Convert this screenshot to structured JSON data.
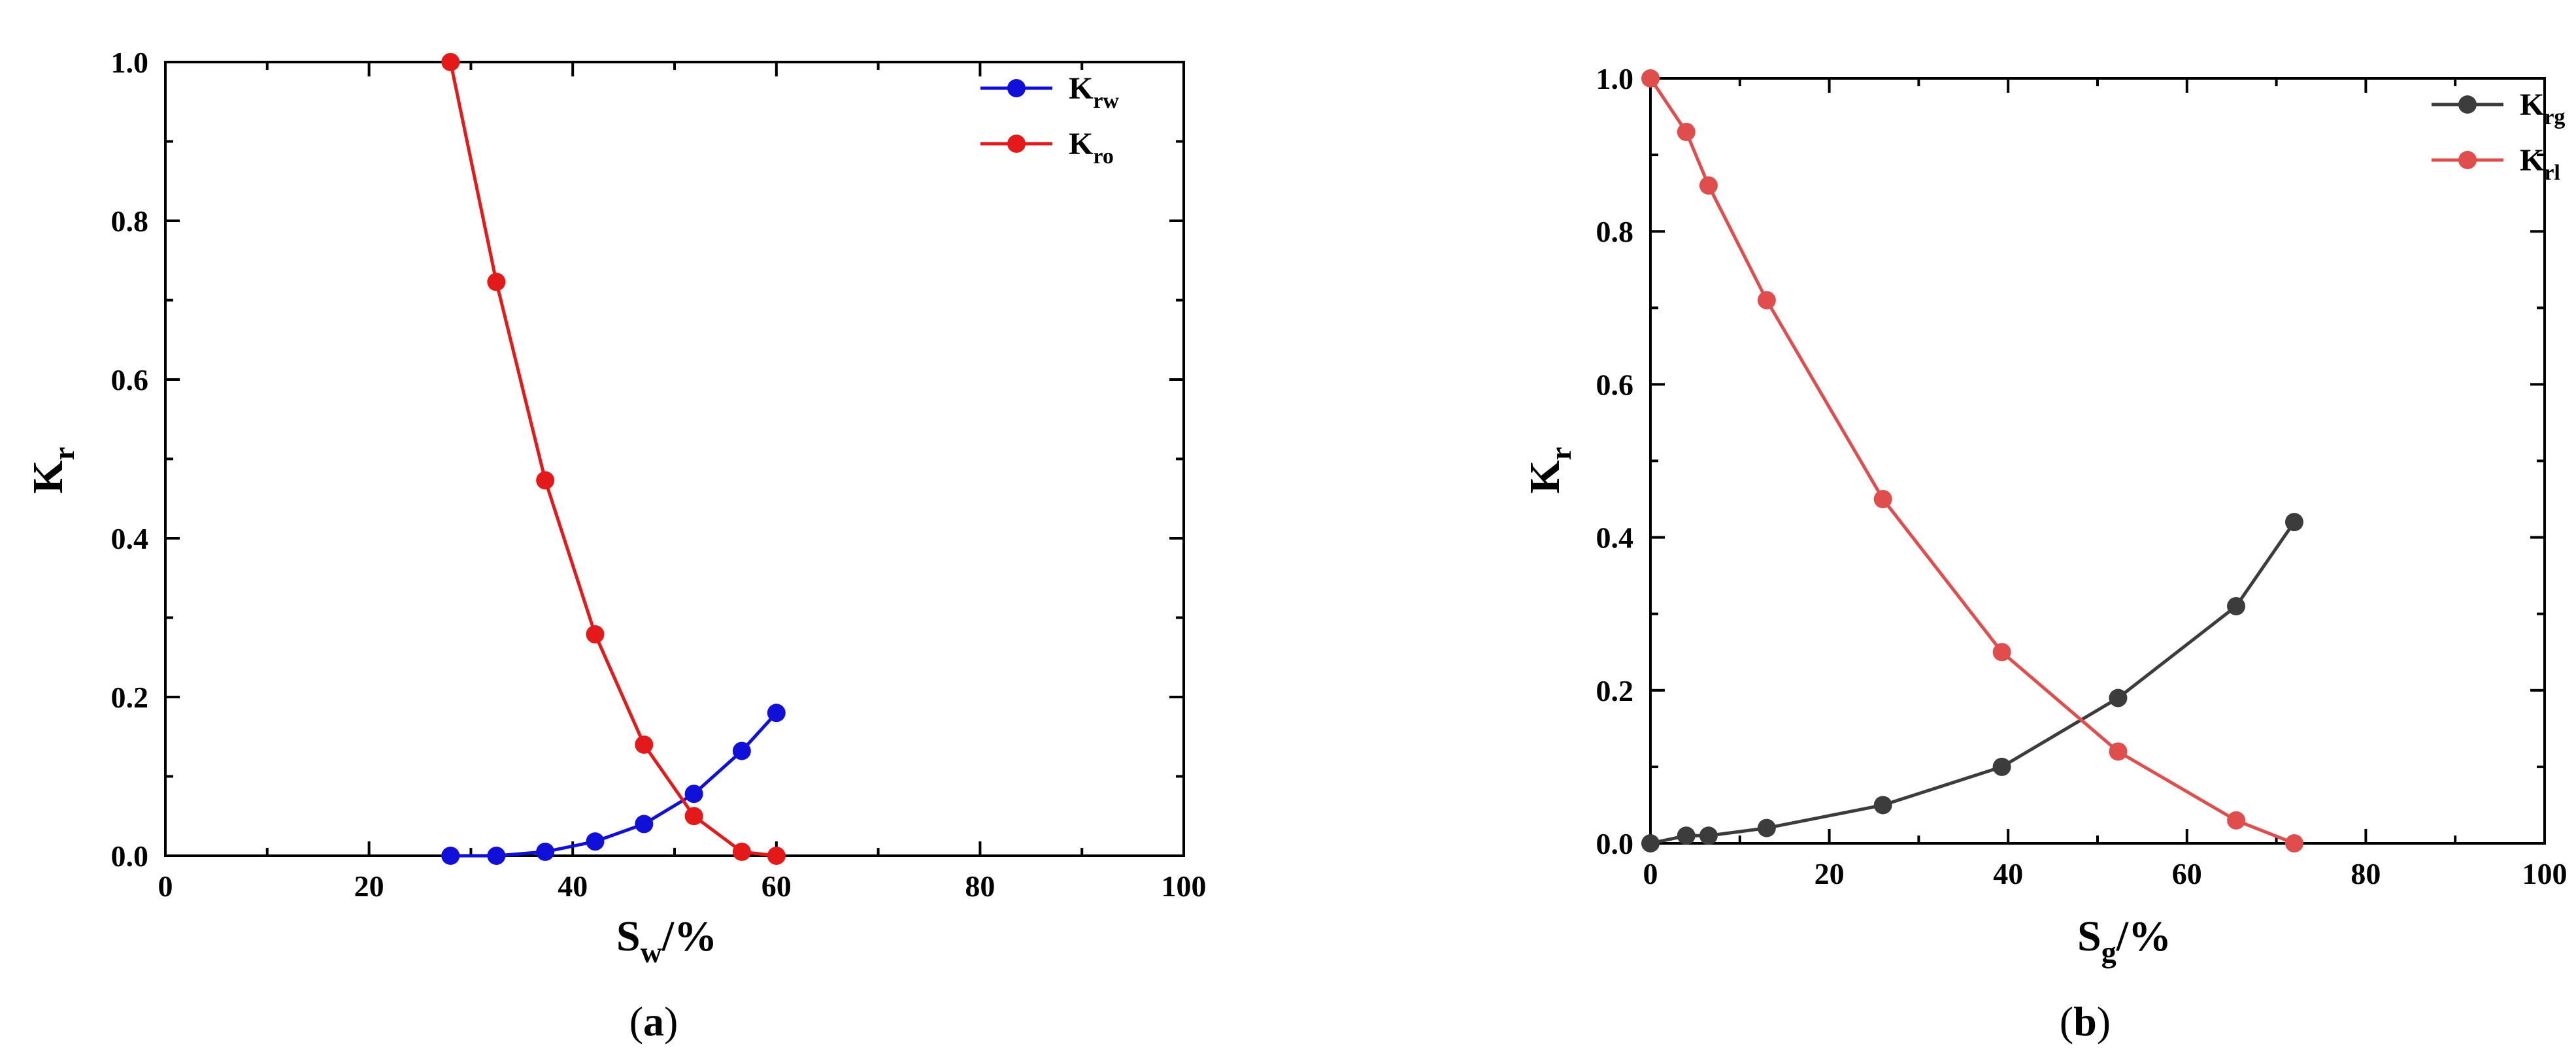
{
  "chart_data": [
    {
      "type": "line",
      "panel_label": "a",
      "xlabel": {
        "main": "S",
        "sub": "w",
        "suffix": "/%"
      },
      "ylabel": {
        "main": "K",
        "sub": "r"
      },
      "xlim": [
        0,
        100
      ],
      "ylim": [
        0,
        1.0
      ],
      "xticks": [
        "0",
        "20",
        "40",
        "60",
        "80",
        "100"
      ],
      "yticks": [
        "0.0",
        "0.2",
        "0.4",
        "0.6",
        "0.8",
        "1.0"
      ],
      "grid": false,
      "legend_position": "top-right",
      "series": [
        {
          "name": {
            "main": "K",
            "sub": "rw"
          },
          "color": "#1010d8",
          "x": [
            28.0,
            32.5,
            37.3,
            42.2,
            47.0,
            51.9,
            56.6,
            60.0
          ],
          "y": [
            0.0,
            0.0,
            0.005,
            0.018,
            0.04,
            0.078,
            0.132,
            0.18
          ]
        },
        {
          "name": {
            "main": "K",
            "sub": "ro"
          },
          "color": "#e41a1a",
          "x": [
            28.0,
            32.5,
            37.3,
            42.2,
            47.0,
            51.9,
            56.6,
            60.0
          ],
          "y": [
            1.0,
            0.723,
            0.473,
            0.279,
            0.14,
            0.05,
            0.005,
            0.0
          ]
        }
      ]
    },
    {
      "type": "line",
      "panel_label": "b",
      "xlabel": {
        "main": "S",
        "sub": "g",
        "suffix": "/%"
      },
      "ylabel": {
        "main": "K",
        "sub": "r"
      },
      "xlim": [
        0,
        100
      ],
      "ylim": [
        0,
        1.0
      ],
      "xticks": [
        "0",
        "20",
        "40",
        "60",
        "80",
        "100"
      ],
      "yticks": [
        "0.0",
        "0.2",
        "0.4",
        "0.6",
        "0.8",
        "1.0"
      ],
      "grid": false,
      "legend_position": "top-right",
      "series": [
        {
          "name": {
            "main": "K",
            "sub": "rg"
          },
          "color": "#3c3c3c",
          "x": [
            0,
            4,
            6.5,
            13,
            26,
            39.3,
            52.3,
            65.5,
            72
          ],
          "y": [
            0.0,
            0.01,
            0.01,
            0.02,
            0.05,
            0.1,
            0.19,
            0.31,
            0.42
          ]
        },
        {
          "name": {
            "main": "K",
            "sub": "rl"
          },
          "color": "#e04d4d",
          "x": [
            0,
            4,
            6.5,
            13,
            26,
            39.3,
            52.3,
            65.5,
            72
          ],
          "y": [
            1.0,
            0.93,
            0.86,
            0.71,
            0.45,
            0.25,
            0.12,
            0.03,
            0.0
          ]
        }
      ]
    }
  ]
}
